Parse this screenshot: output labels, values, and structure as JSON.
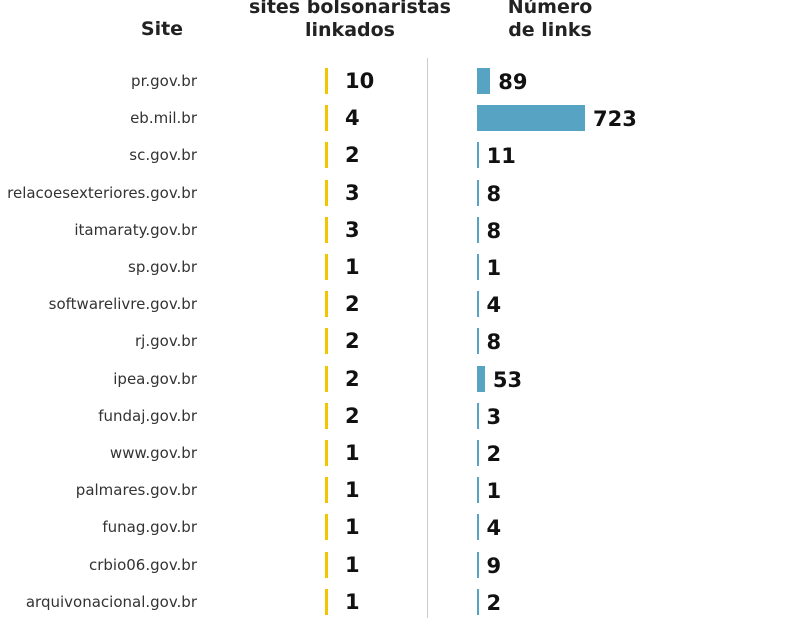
{
  "headers": {
    "site": "Site",
    "sites_line1": "sites bolsonaristas",
    "sites_line2": "linkados",
    "links_line1": "Número",
    "links_line2": "de links"
  },
  "colors": {
    "sites_bar": "#f2c500",
    "links_bar": "#56a3c4"
  },
  "chart_data": {
    "type": "table",
    "columns": [
      "Site",
      "sites bolsonaristas linkados",
      "Número de links"
    ],
    "rows": [
      {
        "site": "pr.gov.br",
        "sites": 10,
        "links": 89
      },
      {
        "site": "eb.mil.br",
        "sites": 4,
        "links": 723
      },
      {
        "site": "sc.gov.br",
        "sites": 2,
        "links": 11
      },
      {
        "site": "relacoesexteriores.gov.br",
        "sites": 3,
        "links": 8
      },
      {
        "site": "itamaraty.gov.br",
        "sites": 3,
        "links": 8
      },
      {
        "site": "sp.gov.br",
        "sites": 1,
        "links": 1
      },
      {
        "site": "softwarelivre.gov.br",
        "sites": 2,
        "links": 4
      },
      {
        "site": "rj.gov.br",
        "sites": 2,
        "links": 8
      },
      {
        "site": "ipea.gov.br",
        "sites": 2,
        "links": 53
      },
      {
        "site": "fundaj.gov.br",
        "sites": 2,
        "links": 3
      },
      {
        "site": "www.gov.br",
        "sites": 1,
        "links": 2
      },
      {
        "site": "palmares.gov.br",
        "sites": 1,
        "links": 1
      },
      {
        "site": "funag.gov.br",
        "sites": 1,
        "links": 4
      },
      {
        "site": "crbio06.gov.br",
        "sites": 1,
        "links": 9
      },
      {
        "site": "arquivonacional.gov.br",
        "sites": 1,
        "links": 2
      }
    ]
  }
}
